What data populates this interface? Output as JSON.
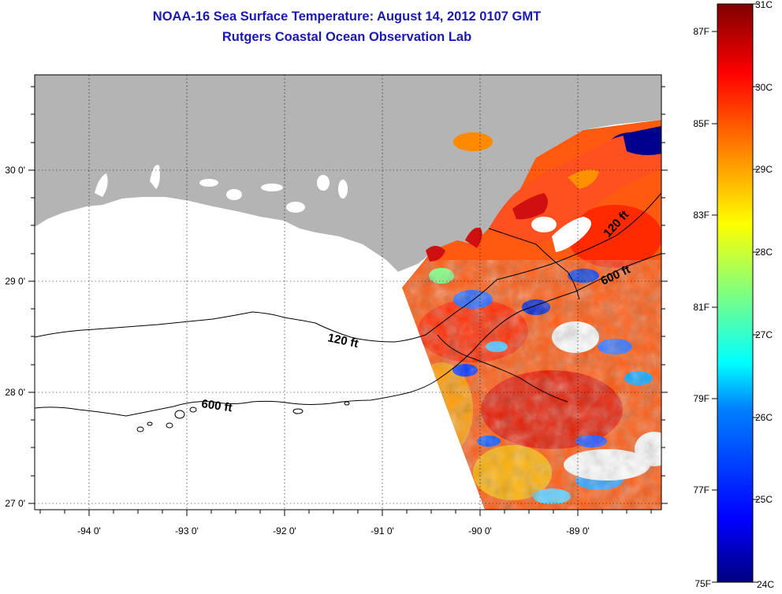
{
  "title": "NOAA-16 Sea Surface Temperature:  August 14, 2012 0107 GMT",
  "subtitle": "Rutgers Coastal Ocean Observation Lab",
  "map": {
    "lon_ticks": [
      "-94 0'",
      "-93 0'",
      "-92 0'",
      "-91 0'",
      "-90 0'",
      "-89 0'"
    ],
    "lat_ticks": [
      "30 0'",
      "29 0'",
      "28 0'",
      "27 0'"
    ],
    "contours": [
      {
        "label": "120 ft"
      },
      {
        "label": "600 ft"
      },
      {
        "label": "120 ft"
      },
      {
        "label": "600 ft"
      }
    ],
    "colors": {
      "land": "#b4b4b4",
      "background": "#ffffff",
      "frame": "#000000"
    }
  },
  "colorbar": {
    "fahrenheit_labels": [
      "87F",
      "85F",
      "83F",
      "81F",
      "79F",
      "77F",
      "75F"
    ],
    "celsius_labels": [
      "31C",
      "30C",
      "29C",
      "28C",
      "27C",
      "26C",
      "25C",
      "24C"
    ],
    "colors": [
      "#00007f",
      "#0000ff",
      "#0080ff",
      "#00ffff",
      "#80ff80",
      "#ffff00",
      "#ff8000",
      "#ff0000",
      "#7f0000"
    ]
  }
}
